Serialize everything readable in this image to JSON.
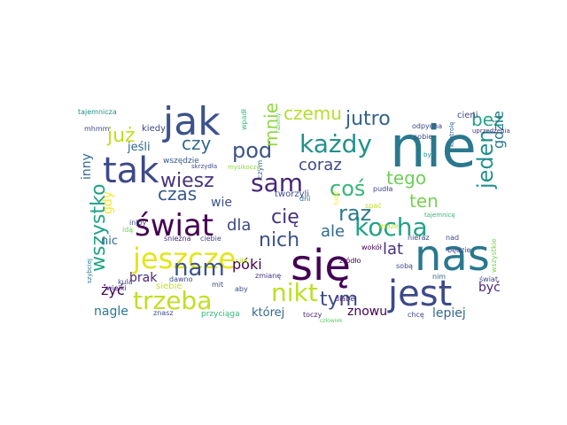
{
  "words": [
    {
      "text": "nie",
      "color": "#2a788e"
    },
    {
      "text": "się",
      "color": "#440154"
    },
    {
      "text": "nas",
      "color": "#2a788e"
    },
    {
      "text": "jak",
      "color": "#3b528b"
    },
    {
      "text": "jest",
      "color": "#3e4989"
    },
    {
      "text": "tak",
      "color": "#3e4989"
    },
    {
      "text": "świat",
      "color": "#440154"
    },
    {
      "text": "jeszcze",
      "color": "#e5e419"
    },
    {
      "text": "każdy",
      "color": "#21918c"
    },
    {
      "text": "sam",
      "color": "#482878"
    },
    {
      "text": "kocha",
      "color": "#20a387"
    },
    {
      "text": "trzeba",
      "color": "#c2df23"
    },
    {
      "text": "nikt",
      "color": "#bddf26"
    },
    {
      "text": "nam",
      "color": "#3b528b"
    },
    {
      "text": "coś",
      "color": "#35b779"
    },
    {
      "text": "jutro",
      "color": "#33638d"
    },
    {
      "text": "czemu",
      "color": "#b5de2b"
    },
    {
      "text": "pod",
      "color": "#3b528b"
    },
    {
      "text": "raz",
      "color": "#2a788e"
    },
    {
      "text": "wiesz",
      "color": "#46327e"
    },
    {
      "text": "już",
      "color": "#c2df23"
    },
    {
      "text": "jeden",
      "color": "#21918c"
    },
    {
      "text": "wszystko",
      "color": "#20a387"
    },
    {
      "text": "tym",
      "color": "#3e4989"
    },
    {
      "text": "cię",
      "color": "#46327e"
    },
    {
      "text": "nich",
      "color": "#3b528b"
    },
    {
      "text": "czy",
      "color": "#31688e"
    },
    {
      "text": "mnie",
      "color": "#90d743"
    },
    {
      "text": "bez",
      "color": "#20a387"
    },
    {
      "text": "tego",
      "color": "#6ece58"
    },
    {
      "text": "ten",
      "color": "#7ad151"
    },
    {
      "text": "coraz",
      "color": "#3e4989"
    },
    {
      "text": "czas",
      "color": "#38598c"
    },
    {
      "text": "dla",
      "color": "#3e4989"
    },
    {
      "text": "lat",
      "color": "#46327e"
    },
    {
      "text": "ale",
      "color": "#31688e"
    },
    {
      "text": "gdzie",
      "color": "#2a788e"
    },
    {
      "text": "póki",
      "color": "#440154"
    },
    {
      "text": "lepiej",
      "color": "#31688e"
    },
    {
      "text": "znowu",
      "color": "#440154"
    },
    {
      "text": "wie",
      "color": "#3b528b"
    },
    {
      "text": "inny",
      "color": "#31688e"
    },
    {
      "text": "brak",
      "color": "#482878"
    },
    {
      "text": "nagle",
      "color": "#2a788e"
    },
    {
      "text": "której",
      "color": "#31688e"
    },
    {
      "text": "być",
      "color": "#482878"
    },
    {
      "text": "żyć",
      "color": "#440154"
    },
    {
      "text": "gdy",
      "color": "#fde725"
    },
    {
      "text": "jeśli",
      "color": "#31688e"
    },
    {
      "text": "nic",
      "color": "#31688e"
    },
    {
      "text": "kiedy",
      "color": "#3e4989"
    },
    {
      "text": "tajemnicza",
      "color": "#21918c"
    },
    {
      "text": "mhmm",
      "color": "#3e4989"
    },
    {
      "text": "wszędzie",
      "color": "#38598c"
    },
    {
      "text": "wpadł",
      "color": "#35b779"
    },
    {
      "text": "razemy",
      "color": "#5ec962"
    },
    {
      "text": "czym",
      "color": "#31688e"
    },
    {
      "text": "dni",
      "color": "#31688e"
    },
    {
      "text": "tworzyli",
      "color": "#3e4989"
    },
    {
      "text": "mysikoczy",
      "color": "#90d743"
    },
    {
      "text": "skrzydła",
      "color": "#3e4989"
    },
    {
      "text": "iniby",
      "color": "#3e4989"
    },
    {
      "text": "idą",
      "color": "#6ece58"
    },
    {
      "text": "kula",
      "color": "#3e4989"
    },
    {
      "text": "śnieżna",
      "color": "#482878"
    },
    {
      "text": "ciebie",
      "color": "#3e4989"
    },
    {
      "text": "dawno",
      "color": "#3e4989"
    },
    {
      "text": "mit",
      "color": "#3e4989"
    },
    {
      "text": "siebie",
      "color": "#c2df23"
    },
    {
      "text": "wielki",
      "color": "#482878"
    },
    {
      "text": "siła",
      "color": "#b5de2b"
    },
    {
      "text": "zmianę",
      "color": "#46327e"
    },
    {
      "text": "aby",
      "color": "#3e4989"
    },
    {
      "text": "znasz",
      "color": "#3e4989"
    },
    {
      "text": "przyciąga",
      "color": "#35b779"
    },
    {
      "text": "toczy",
      "color": "#482878"
    },
    {
      "text": "człowiek",
      "color": "#5ec962"
    },
    {
      "text": "szybciej",
      "color": "#2a788e"
    },
    {
      "text": "cieni",
      "color": "#3e4989"
    },
    {
      "text": "odpycha",
      "color": "#3e4989"
    },
    {
      "text": "sobie",
      "color": "#3e4989"
    },
    {
      "text": "kontrolę",
      "color": "#31688e"
    },
    {
      "text": "uprzedzenia",
      "color": "#46327e"
    },
    {
      "text": "był",
      "color": "#21918c"
    },
    {
      "text": "tajemnicę",
      "color": "#35b779"
    },
    {
      "text": "ludź",
      "color": "#fde725"
    },
    {
      "text": "pudła",
      "color": "#3e4989"
    },
    {
      "text": "spać",
      "color": "#bddf26"
    },
    {
      "text": "może",
      "color": "#bddf26"
    },
    {
      "text": "wokół",
      "color": "#440154"
    },
    {
      "text": "nieraz",
      "color": "#3e4989"
    },
    {
      "text": "źródło",
      "color": "#440154"
    },
    {
      "text": "sobą",
      "color": "#3e4989"
    },
    {
      "text": "diabeł",
      "color": "#482878"
    },
    {
      "text": "chcę",
      "color": "#3e4989"
    },
    {
      "text": "nim",
      "color": "#31688e"
    },
    {
      "text": "nad",
      "color": "#3e4989"
    },
    {
      "text": "będzie",
      "color": "#3e4989"
    },
    {
      "text": "wszystkie",
      "color": "#7ad151"
    },
    {
      "text": "świat",
      "color": "#3e4989"
    }
  ]
}
